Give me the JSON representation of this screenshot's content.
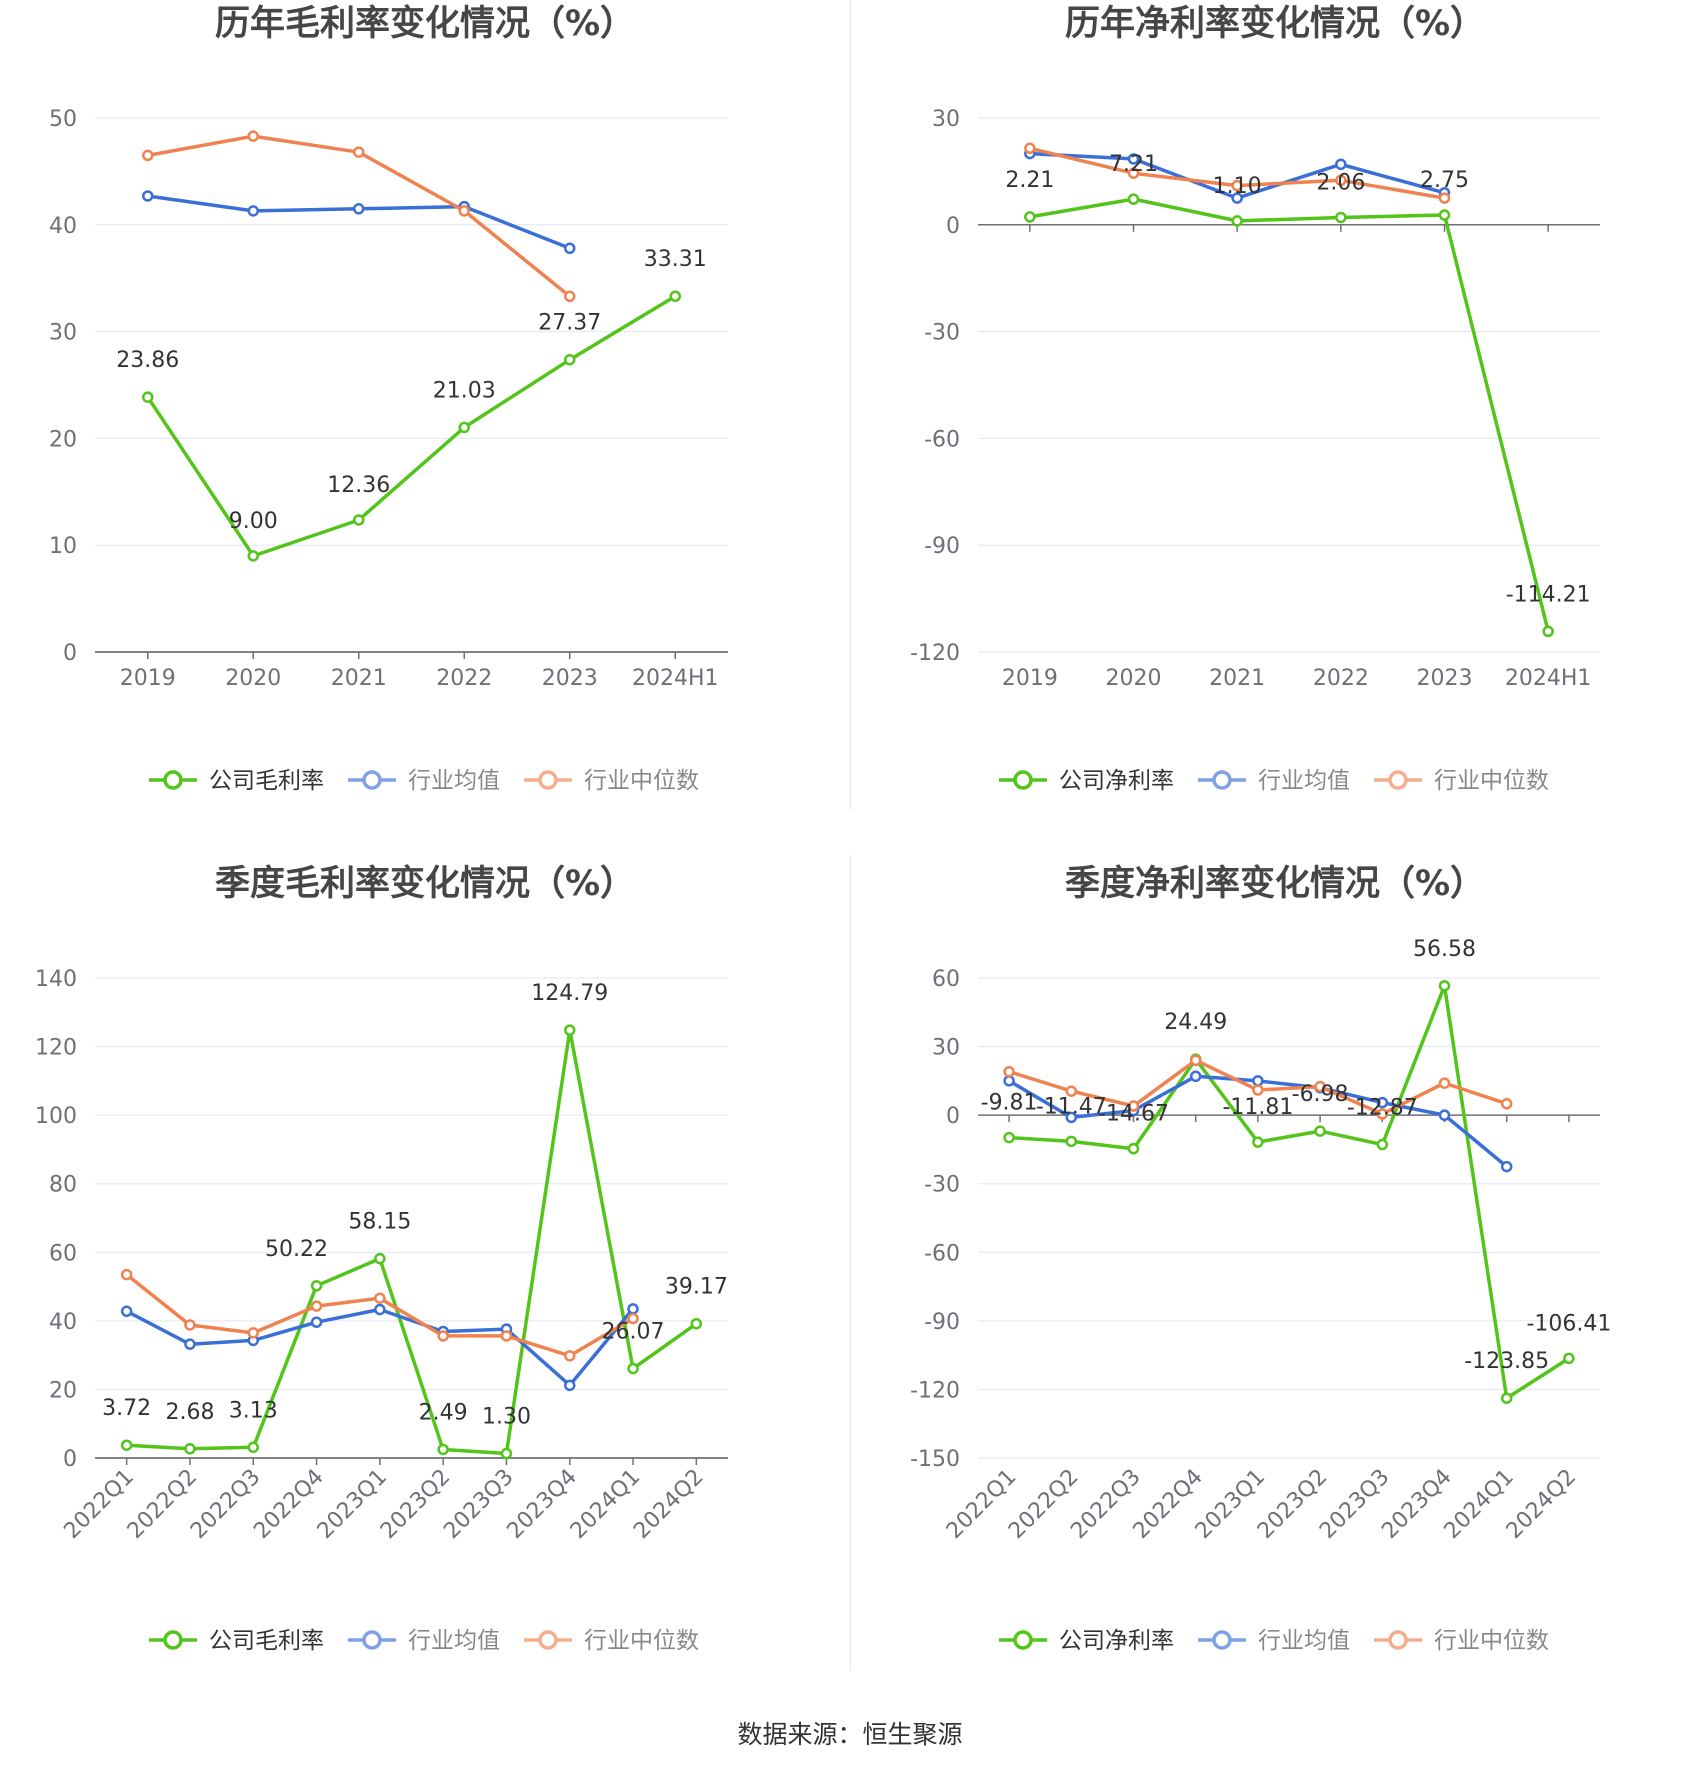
{
  "source": "数据来源：恒生聚源",
  "colors": {
    "company": "#52c41a",
    "avg": "#3a6fd8",
    "median": "#f08250",
    "grid": "#e0e6f1",
    "axis": "#6e7079"
  },
  "chart_data": [
    {
      "type": "line",
      "title": "历年毛利率变化情况（%）",
      "categories": [
        "2019",
        "2020",
        "2021",
        "2022",
        "2023",
        "2024H1"
      ],
      "ylim": [
        0,
        50
      ],
      "yticks": [
        0,
        10,
        20,
        30,
        40,
        50
      ],
      "rotate_x": false,
      "series": [
        {
          "name": "公司毛利率",
          "key": "company",
          "values": [
            23.86,
            9.0,
            12.36,
            21.03,
            27.37,
            33.31
          ],
          "labels": [
            "23.86",
            "9.00",
            "12.36",
            "21.03",
            "27.37",
            "33.31"
          ]
        },
        {
          "name": "行业均值",
          "key": "avg",
          "values": [
            42.7,
            41.3,
            41.5,
            41.7,
            37.8,
            null
          ]
        },
        {
          "name": "行业中位数",
          "key": "median",
          "values": [
            46.5,
            48.3,
            46.8,
            41.3,
            33.3,
            null
          ]
        }
      ]
    },
    {
      "type": "line",
      "title": "历年净利率变化情况（%）",
      "categories": [
        "2019",
        "2020",
        "2021",
        "2022",
        "2023",
        "2024H1"
      ],
      "ylim": [
        -120,
        30
      ],
      "yticks": [
        -120,
        -90,
        -60,
        -30,
        0,
        30
      ],
      "rotate_x": false,
      "series": [
        {
          "name": "公司净利率",
          "key": "company",
          "values": [
            2.21,
            7.21,
            1.1,
            2.06,
            2.75,
            -114.21
          ],
          "labels": [
            "2.21",
            "7.21",
            "1.10",
            "2.06",
            "2.75",
            "-114.21"
          ]
        },
        {
          "name": "行业均值",
          "key": "avg",
          "values": [
            20.0,
            18.5,
            7.5,
            17.0,
            9.0,
            null
          ]
        },
        {
          "name": "行业中位数",
          "key": "median",
          "values": [
            21.5,
            14.5,
            11.0,
            12.5,
            7.5,
            null
          ]
        }
      ]
    },
    {
      "type": "line",
      "title": "季度毛利率变化情况（%）",
      "categories": [
        "2022Q1",
        "2022Q2",
        "2022Q3",
        "2022Q4",
        "2023Q1",
        "2023Q2",
        "2023Q3",
        "2023Q4",
        "2024Q1",
        "2024Q2"
      ],
      "ylim": [
        0,
        140
      ],
      "yticks": [
        0,
        20,
        40,
        60,
        80,
        100,
        120,
        140
      ],
      "rotate_x": true,
      "series": [
        {
          "name": "公司毛利率",
          "key": "company",
          "values": [
            3.72,
            2.68,
            3.13,
            50.22,
            58.15,
            2.49,
            1.3,
            124.79,
            26.07,
            39.17
          ],
          "labels": [
            "3.72",
            "2.68",
            "3.13",
            "50.22",
            "58.15",
            "2.49",
            "1.30",
            "124.79",
            "26.07",
            "39.17"
          ]
        },
        {
          "name": "行业均值",
          "key": "avg",
          "values": [
            42.8,
            33.2,
            34.3,
            39.6,
            43.3,
            36.9,
            37.6,
            21.2,
            43.5,
            null
          ]
        },
        {
          "name": "行业中位数",
          "key": "median",
          "values": [
            53.5,
            38.8,
            36.5,
            44.3,
            46.6,
            35.6,
            35.6,
            29.8,
            40.7,
            null
          ]
        }
      ]
    },
    {
      "type": "line",
      "title": "季度净利率变化情况（%）",
      "categories": [
        "2022Q1",
        "2022Q2",
        "2022Q3",
        "2022Q4",
        "2023Q1",
        "2023Q2",
        "2023Q3",
        "2023Q4",
        "2024Q1",
        "2024Q2"
      ],
      "ylim": [
        -150,
        60
      ],
      "yticks": [
        -150,
        -120,
        -90,
        -60,
        -30,
        0,
        30,
        60
      ],
      "rotate_x": true,
      "series": [
        {
          "name": "公司净利率",
          "key": "company",
          "values": [
            -9.81,
            -11.47,
            -14.67,
            24.49,
            -11.81,
            -6.98,
            -12.87,
            56.58,
            -123.85,
            -106.41
          ],
          "labels": [
            "-9.81",
            "-11.47",
            "-14.67",
            "24.49",
            "-11.81",
            "-6.98",
            "-12.87",
            "56.58",
            "-123.85",
            "-106.41"
          ]
        },
        {
          "name": "行业均值",
          "key": "avg",
          "values": [
            15.0,
            -1.0,
            2.0,
            17.0,
            15.0,
            12.0,
            5.5,
            0.0,
            -22.5,
            null
          ]
        },
        {
          "name": "行业中位数",
          "key": "median",
          "values": [
            19.0,
            10.5,
            4.0,
            24.0,
            11.0,
            12.5,
            0.5,
            14.0,
            5.0,
            null
          ]
        }
      ]
    }
  ]
}
